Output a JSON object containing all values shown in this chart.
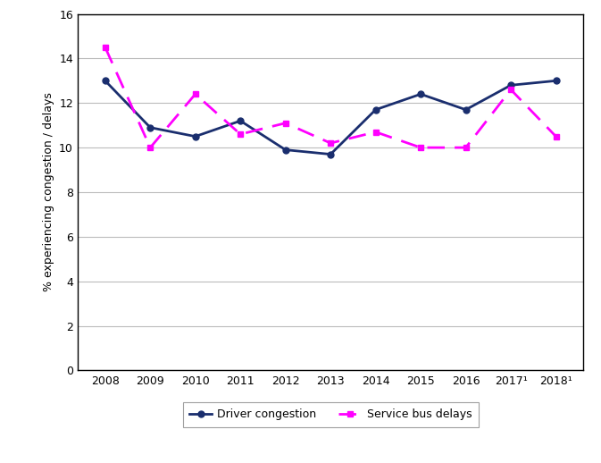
{
  "years": [
    2008,
    2009,
    2010,
    2011,
    2012,
    2013,
    2014,
    2015,
    2016,
    2017,
    2018
  ],
  "year_labels": [
    "2008",
    "2009",
    "2010",
    "2011",
    "2012",
    "2013",
    "2014",
    "2015",
    "2016",
    "2017¹",
    "2018¹"
  ],
  "driver_congestion": [
    13.0,
    10.9,
    10.5,
    11.2,
    9.9,
    9.7,
    11.7,
    12.4,
    11.7,
    12.8,
    13.0
  ],
  "service_bus_delays": [
    14.5,
    10.0,
    12.4,
    10.6,
    11.1,
    10.2,
    10.7,
    10.0,
    10.0,
    12.6,
    10.5
  ],
  "driver_color": "#1a2e6e",
  "bus_color": "#ff00ff",
  "ylabel": "% experiencing congestion / delays",
  "ylim": [
    0,
    16
  ],
  "yticks": [
    0,
    2,
    4,
    6,
    8,
    10,
    12,
    14,
    16
  ],
  "legend_driver": "Driver congestion",
  "legend_bus": "Service bus delays",
  "background_color": "#ffffff",
  "grid_color": "#bbbbbb"
}
